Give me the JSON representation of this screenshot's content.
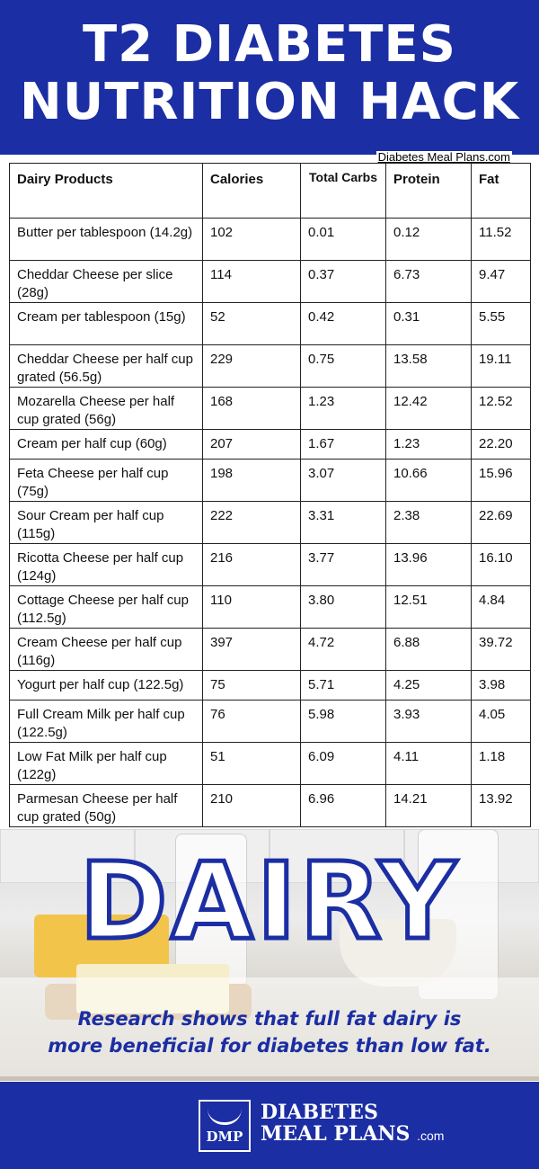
{
  "header": {
    "title_line1": "T2 DIABETES",
    "title_line2": "NUTRITION HACK",
    "site": "Diabetes Meal Plans.com"
  },
  "table": {
    "columns": [
      "Dairy Products",
      "Calories",
      "Total Carbs",
      "Protein",
      "Fat"
    ],
    "rows": [
      [
        "Butter per tablespoon (14.2g)",
        "102",
        "0.01",
        "0.12",
        "11.52"
      ],
      [
        "Cheddar Cheese per slice (28g)",
        "114",
        "0.37",
        "6.73",
        "9.47"
      ],
      [
        "Cream per tablespoon (15g)",
        "52",
        "0.42",
        "0.31",
        "5.55"
      ],
      [
        "Cheddar Cheese per half cup grated (56.5g)",
        "229",
        "0.75",
        "13.58",
        "19.11"
      ],
      [
        "Mozarella Cheese per half cup grated (56g)",
        "168",
        "1.23",
        "12.42",
        "12.52"
      ],
      [
        "Cream per half cup (60g)",
        "207",
        "1.67",
        "1.23",
        "22.20"
      ],
      [
        "Feta Cheese per half cup (75g)",
        "198",
        "3.07",
        "10.66",
        "15.96"
      ],
      [
        "Sour Cream per half cup (115g)",
        "222",
        "3.31",
        "2.38",
        "22.69"
      ],
      [
        "Ricotta Cheese per half cup (124g)",
        "216",
        "3.77",
        "13.96",
        "16.10"
      ],
      [
        "Cottage Cheese per half cup (112.5g)",
        "110",
        "3.80",
        "12.51",
        "4.84"
      ],
      [
        "Cream Cheese per half cup (116g)",
        "397",
        "4.72",
        "6.88",
        "39.72"
      ],
      [
        "Yogurt per half cup (122.5g)",
        "75",
        "5.71",
        "4.25",
        "3.98"
      ],
      [
        "Full Cream Milk per half cup (122.5g)",
        "76",
        "5.98",
        "3.93",
        "4.05"
      ],
      [
        "Low Fat Milk per half cup (122g)",
        "51",
        "6.09",
        "4.11",
        "1.18"
      ],
      [
        "Parmesan Cheese per half cup grated (50g)",
        "210",
        "6.96",
        "14.21",
        "13.92"
      ]
    ]
  },
  "banner": {
    "word": "DAIRY",
    "research_line1": "Research shows that full fat dairy is",
    "research_line2": "more beneficial for diabetes than low fat."
  },
  "footer": {
    "logo_abbr": "DMP",
    "brand_line1": "DIABETES",
    "brand_line2": "MEAL PLANS",
    "brand_suffix": ".com"
  },
  "colors": {
    "brand_blue": "#1b2ea3",
    "text": "#111111",
    "background": "#ffffff"
  }
}
